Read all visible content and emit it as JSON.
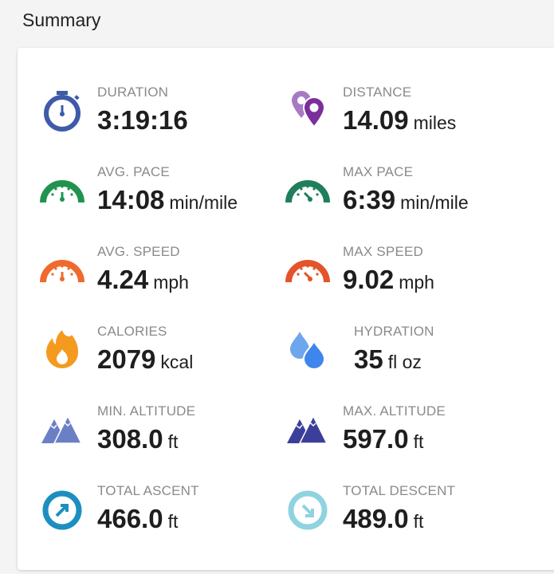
{
  "title": "Summary",
  "stats": [
    {
      "label": "DURATION",
      "value": "3:19:16",
      "unit": "",
      "icon": "stopwatch-icon",
      "color": "#3f5aa8"
    },
    {
      "label": "DISTANCE",
      "value": "14.09",
      "unit": "miles",
      "icon": "location-pins-icon",
      "color": "#7b2f9b"
    },
    {
      "label": "AVG. PACE",
      "value": "14:08",
      "unit": "min/mile",
      "icon": "gauge-icon",
      "color": "#21934f"
    },
    {
      "label": "MAX PACE",
      "value": "6:39",
      "unit": "min/mile",
      "icon": "gauge-icon",
      "color": "#1f7f5a"
    },
    {
      "label": "AVG. SPEED",
      "value": "4.24",
      "unit": "mph",
      "icon": "gauge-icon",
      "color": "#ef6a2c"
    },
    {
      "label": "MAX SPEED",
      "value": "9.02",
      "unit": "mph",
      "icon": "gauge-icon",
      "color": "#e4542a"
    },
    {
      "label": "CALORIES",
      "value": "2079",
      "unit": "kcal",
      "icon": "flame-icon",
      "color": "#f39a1f"
    },
    {
      "label": "HYDRATION",
      "value": "35",
      "unit": "fl oz",
      "icon": "water-drops-icon",
      "color": "#3f86ec"
    },
    {
      "label": "MIN. ALTITUDE",
      "value": "308.0",
      "unit": "ft",
      "icon": "mountains-icon",
      "color": "#6b80c4"
    },
    {
      "label": "MAX. ALTITUDE",
      "value": "597.0",
      "unit": "ft",
      "icon": "mountains-icon",
      "color": "#3b3f9a"
    },
    {
      "label": "TOTAL ASCENT",
      "value": "466.0",
      "unit": "ft",
      "icon": "ascent-arrow-icon",
      "color": "#1c8fbf"
    },
    {
      "label": "TOTAL DESCENT",
      "value": "489.0",
      "unit": "ft",
      "icon": "descent-arrow-icon",
      "color": "#8fd3e0"
    }
  ]
}
